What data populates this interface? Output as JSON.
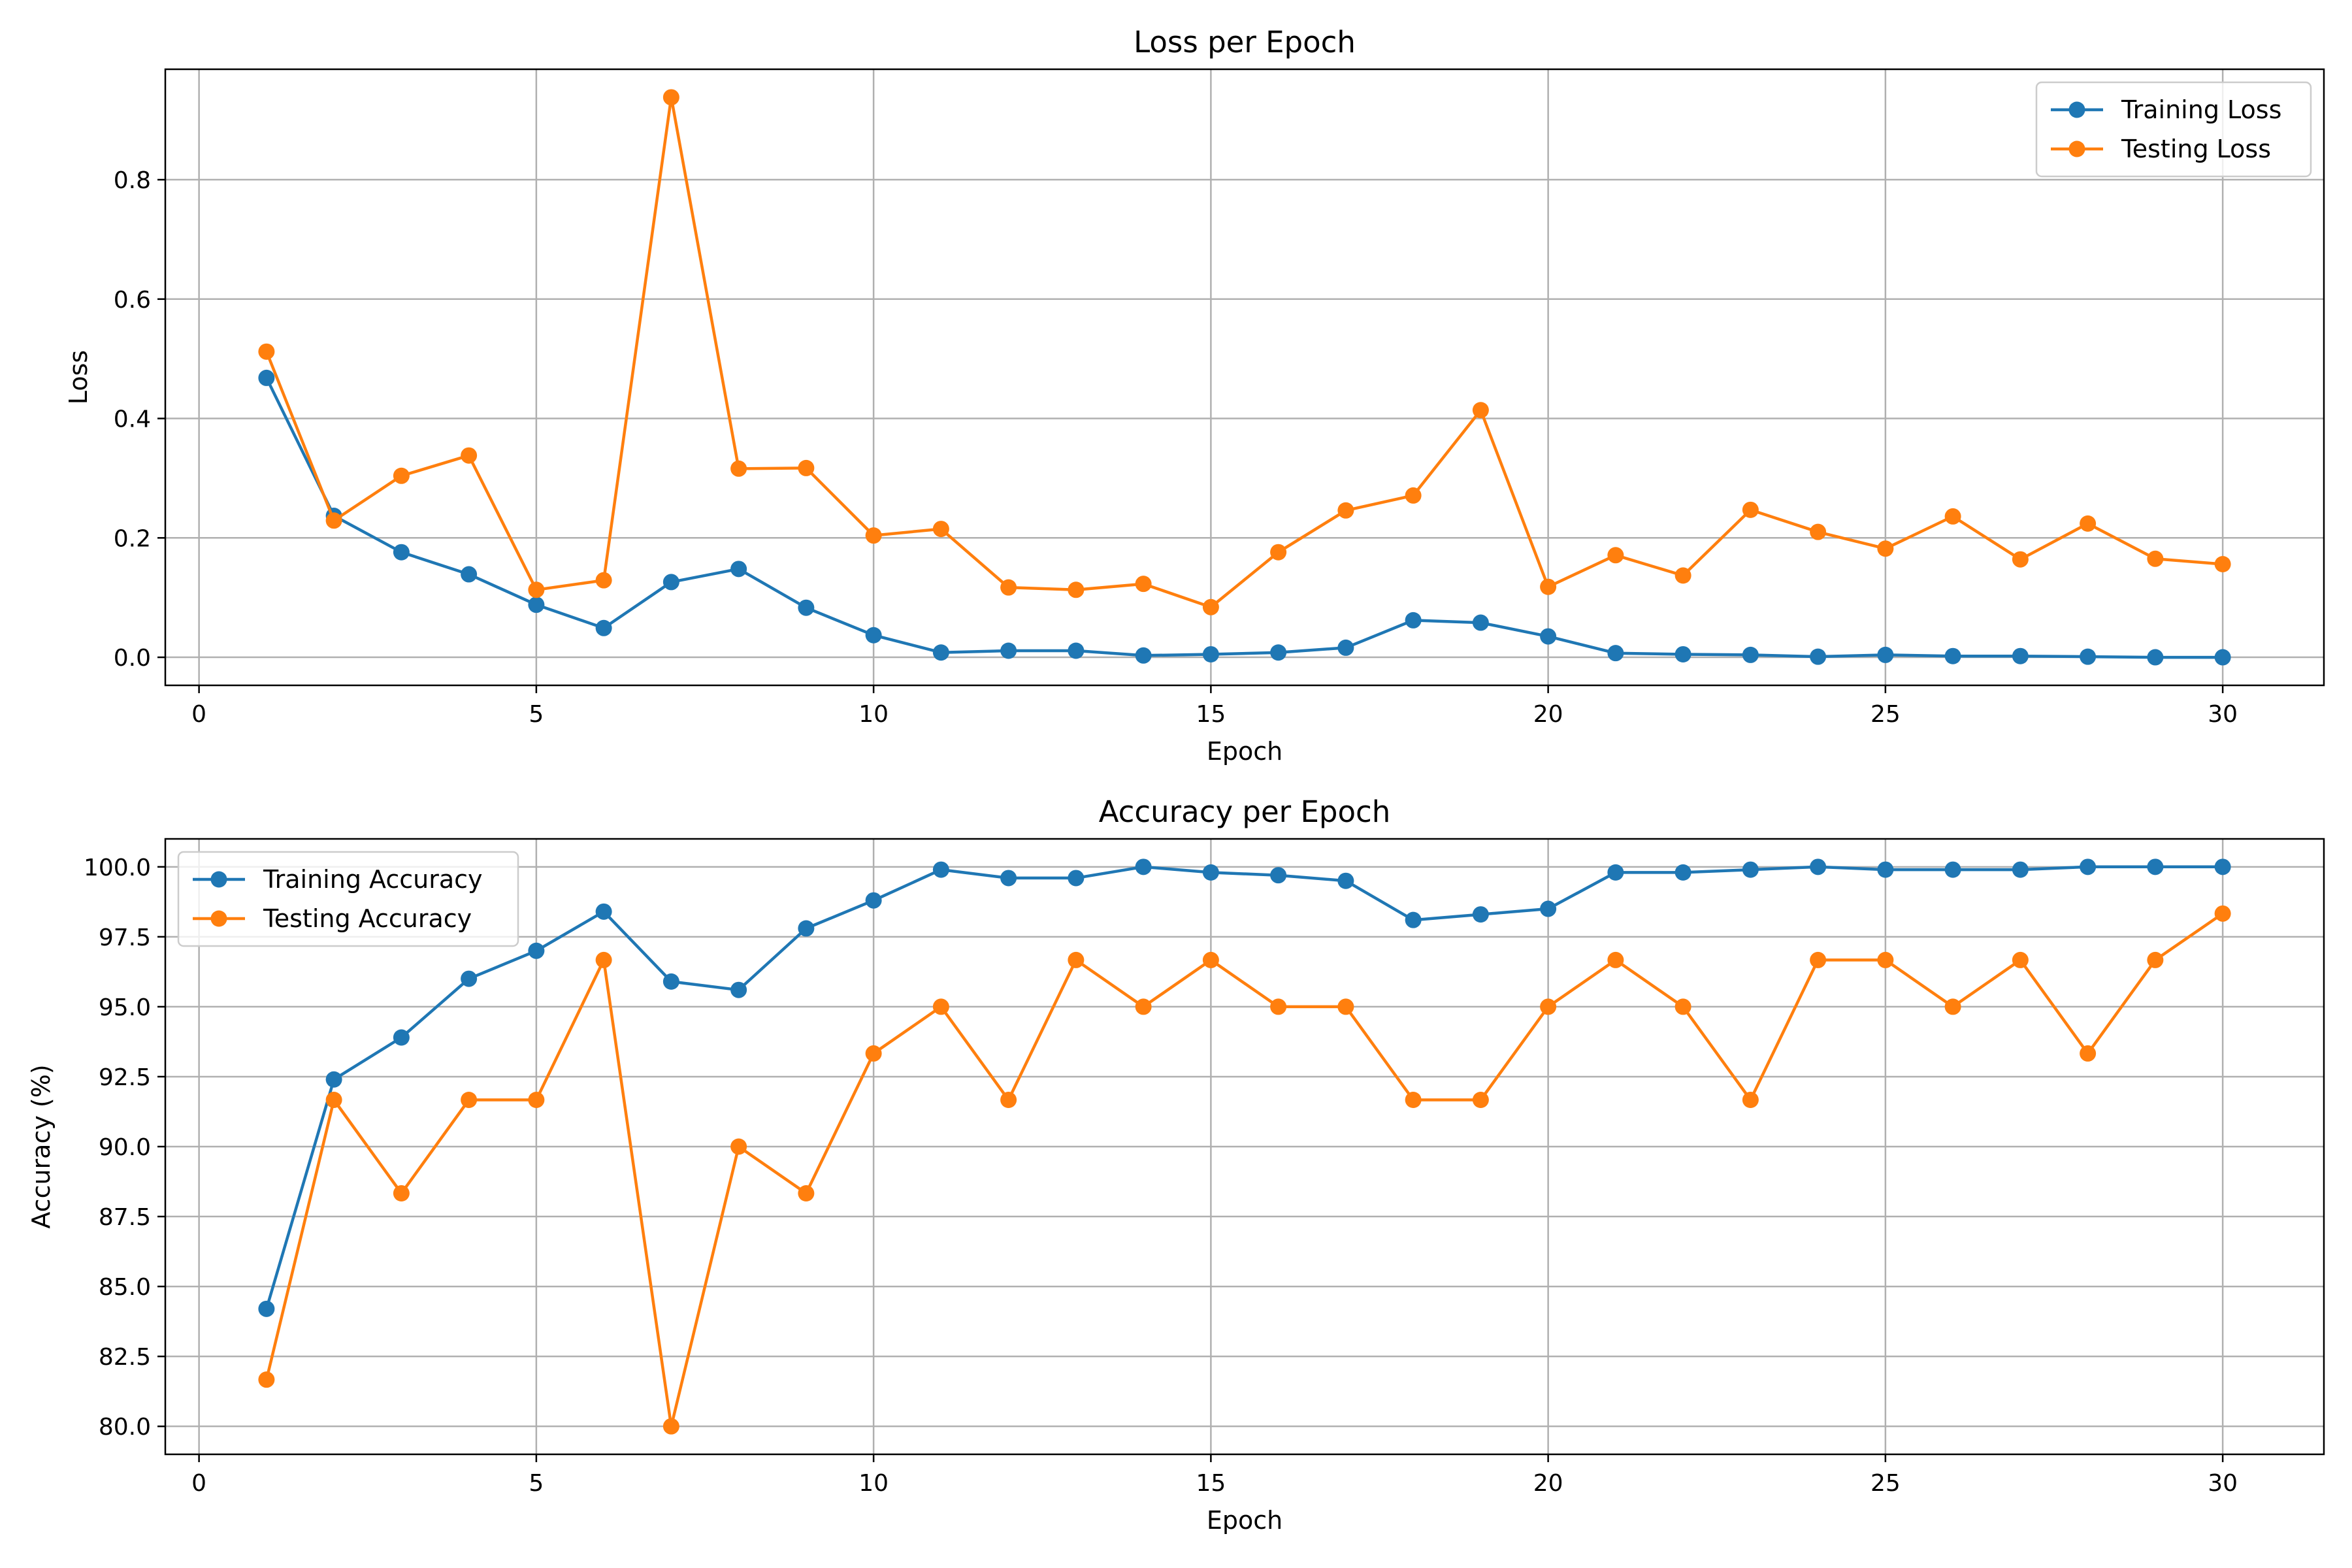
{
  "chart_data": [
    {
      "type": "line",
      "title": "Loss per Epoch",
      "xlabel": "Epoch",
      "ylabel": "Loss",
      "xlim": [
        -0.5,
        31.5
      ],
      "ylim": [
        -0.047,
        0.985
      ],
      "xticks": [
        0,
        5,
        10,
        15,
        20,
        25,
        30
      ],
      "yticks": [
        0.0,
        0.2,
        0.4,
        0.6,
        0.8
      ],
      "ytick_labels": [
        "0.0",
        "0.2",
        "0.4",
        "0.6",
        "0.8"
      ],
      "grid": true,
      "legend_position": "top-right",
      "x": [
        1,
        2,
        3,
        4,
        5,
        6,
        7,
        8,
        9,
        10,
        11,
        12,
        13,
        14,
        15,
        16,
        17,
        18,
        19,
        20,
        21,
        22,
        23,
        24,
        25,
        26,
        27,
        28,
        29,
        30
      ],
      "series": [
        {
          "name": "Training Loss",
          "color": "#1f77b4",
          "values": [
            0.468,
            0.237,
            0.176,
            0.139,
            0.088,
            0.049,
            0.126,
            0.148,
            0.083,
            0.037,
            0.008,
            0.011,
            0.011,
            0.003,
            0.005,
            0.008,
            0.016,
            0.062,
            0.058,
            0.035,
            0.007,
            0.005,
            0.004,
            0.001,
            0.004,
            0.002,
            0.002,
            0.001,
            0.0,
            0.0
          ]
        },
        {
          "name": "Testing Loss",
          "color": "#ff7f0e",
          "values": [
            0.512,
            0.229,
            0.304,
            0.338,
            0.113,
            0.129,
            0.938,
            0.316,
            0.317,
            0.204,
            0.215,
            0.117,
            0.113,
            0.123,
            0.084,
            0.176,
            0.246,
            0.271,
            0.414,
            0.118,
            0.171,
            0.137,
            0.247,
            0.21,
            0.182,
            0.236,
            0.164,
            0.224,
            0.165,
            0.156
          ]
        }
      ]
    },
    {
      "type": "line",
      "title": "Accuracy per Epoch",
      "xlabel": "Epoch",
      "ylabel": "Accuracy (%)",
      "xlim": [
        -0.5,
        31.5
      ],
      "ylim": [
        79.0,
        101.0
      ],
      "xticks": [
        0,
        5,
        10,
        15,
        20,
        25,
        30
      ],
      "yticks": [
        80.0,
        82.5,
        85.0,
        87.5,
        90.0,
        92.5,
        95.0,
        97.5,
        100.0
      ],
      "ytick_labels": [
        "80.0",
        "82.5",
        "85.0",
        "87.5",
        "90.0",
        "92.5",
        "95.0",
        "97.5",
        "100.0"
      ],
      "grid": true,
      "legend_position": "top-left",
      "x": [
        1,
        2,
        3,
        4,
        5,
        6,
        7,
        8,
        9,
        10,
        11,
        12,
        13,
        14,
        15,
        16,
        17,
        18,
        19,
        20,
        21,
        22,
        23,
        24,
        25,
        26,
        27,
        28,
        29,
        30
      ],
      "series": [
        {
          "name": "Training Accuracy",
          "color": "#1f77b4",
          "values": [
            84.2,
            92.4,
            93.9,
            96.0,
            97.0,
            98.4,
            95.9,
            95.6,
            97.8,
            98.8,
            99.9,
            99.6,
            99.6,
            100.0,
            99.8,
            99.7,
            99.5,
            98.1,
            98.3,
            98.5,
            99.8,
            99.8,
            99.9,
            100.0,
            99.9,
            99.9,
            99.9,
            100.0,
            100.0,
            100.0
          ]
        },
        {
          "name": "Testing Accuracy",
          "color": "#ff7f0e",
          "values": [
            81.67,
            91.67,
            88.33,
            91.67,
            91.67,
            96.67,
            80.0,
            90.0,
            88.33,
            93.33,
            95.0,
            91.67,
            96.67,
            95.0,
            96.67,
            95.0,
            95.0,
            91.67,
            91.67,
            95.0,
            96.67,
            95.0,
            91.67,
            96.67,
            96.67,
            95.0,
            96.67,
            93.33,
            96.67,
            98.33
          ]
        }
      ]
    }
  ]
}
